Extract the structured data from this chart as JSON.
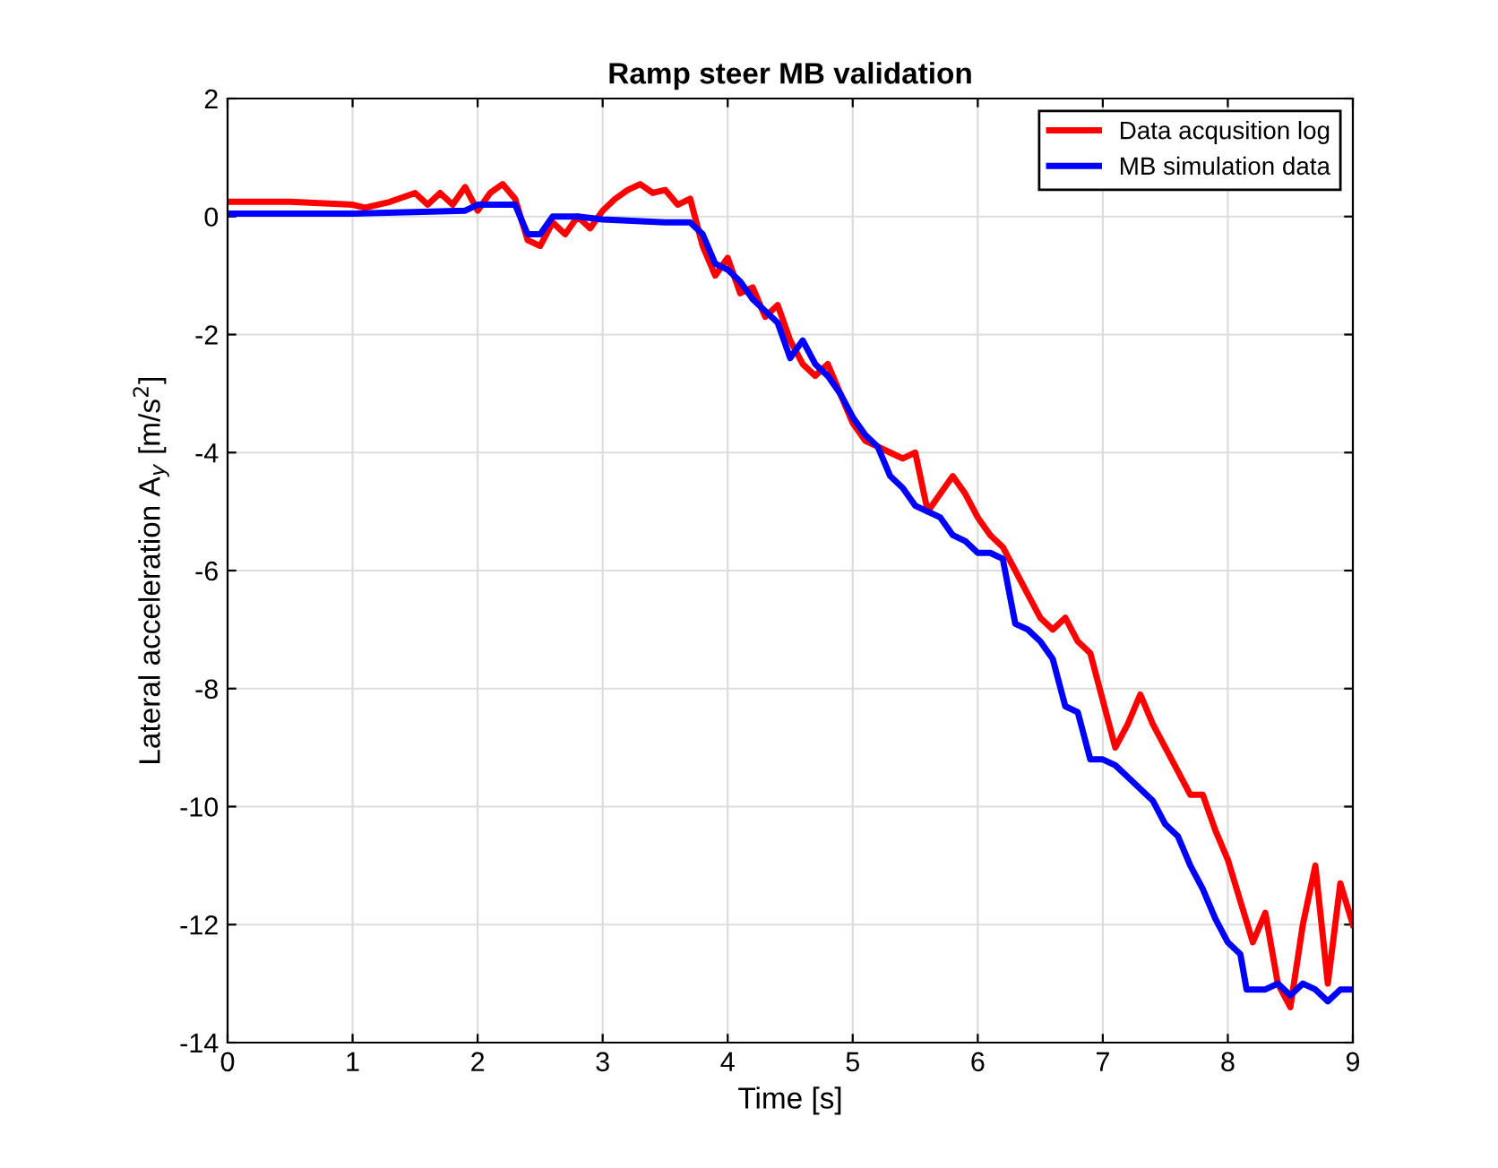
{
  "chart_data": {
    "type": "line",
    "title": "Ramp steer MB validation",
    "xlabel": "Time [s]",
    "ylabel": "Lateral acceleration A$_{y}$ [m/s$^{2}$]",
    "xlim": [
      0,
      9
    ],
    "ylim": [
      -14,
      2
    ],
    "xticks": [
      0,
      1,
      2,
      3,
      4,
      5,
      6,
      7,
      8,
      9
    ],
    "yticks": [
      -14,
      -12,
      -10,
      -8,
      -6,
      -4,
      -2,
      0,
      2
    ],
    "grid": true,
    "legend": "top right",
    "line_style": "solid",
    "marker": "none",
    "series": [
      {
        "name": "Data acqusition log",
        "color": "#ff0000",
        "x": [
          0,
          0.5,
          1.0,
          1.1,
          1.3,
          1.5,
          1.6,
          1.7,
          1.8,
          1.9,
          2.0,
          2.1,
          2.2,
          2.3,
          2.4,
          2.5,
          2.6,
          2.7,
          2.8,
          2.9,
          3.0,
          3.1,
          3.2,
          3.3,
          3.4,
          3.5,
          3.6,
          3.7,
          3.8,
          3.9,
          4.0,
          4.1,
          4.2,
          4.3,
          4.4,
          4.5,
          4.6,
          4.7,
          4.8,
          4.9,
          5.0,
          5.1,
          5.2,
          5.3,
          5.4,
          5.5,
          5.6,
          5.7,
          5.8,
          5.9,
          6.0,
          6.1,
          6.2,
          6.3,
          6.4,
          6.5,
          6.6,
          6.7,
          6.8,
          6.9,
          7.0,
          7.1,
          7.2,
          7.3,
          7.4,
          7.5,
          7.6,
          7.7,
          7.8,
          7.9,
          8.0,
          8.1,
          8.2,
          8.3,
          8.4,
          8.5,
          8.6,
          8.7,
          8.8,
          8.9,
          9.0
        ],
        "values": [
          0.25,
          0.25,
          0.2,
          0.15,
          0.25,
          0.4,
          0.2,
          0.4,
          0.2,
          0.5,
          0.1,
          0.4,
          0.55,
          0.3,
          -0.4,
          -0.5,
          -0.1,
          -0.3,
          0.0,
          -0.2,
          0.1,
          0.3,
          0.45,
          0.55,
          0.4,
          0.45,
          0.2,
          0.3,
          -0.5,
          -1.0,
          -0.7,
          -1.3,
          -1.2,
          -1.7,
          -1.5,
          -2.1,
          -2.5,
          -2.7,
          -2.5,
          -3.0,
          -3.5,
          -3.8,
          -3.9,
          -4.0,
          -4.1,
          -4.0,
          -5.0,
          -4.7,
          -4.4,
          -4.7,
          -5.1,
          -5.4,
          -5.6,
          -6.0,
          -6.4,
          -6.8,
          -7.0,
          -6.8,
          -7.2,
          -7.4,
          -8.2,
          -9.0,
          -8.6,
          -8.1,
          -8.6,
          -9.0,
          -9.4,
          -9.8,
          -9.8,
          -10.4,
          -10.9,
          -11.6,
          -12.3,
          -11.8,
          -13.0,
          -13.4,
          -12.0,
          -11.0,
          -13.0,
          -11.3,
          -12.0
        ]
      },
      {
        "name": "MB simulation data",
        "color": "#0000ff",
        "x": [
          0,
          1.0,
          1.9,
          2.0,
          2.2,
          2.3,
          2.4,
          2.5,
          2.6,
          2.8,
          3.0,
          3.5,
          3.7,
          3.8,
          3.9,
          4.0,
          4.1,
          4.2,
          4.3,
          4.4,
          4.5,
          4.6,
          4.7,
          4.8,
          4.9,
          5.0,
          5.1,
          5.2,
          5.3,
          5.4,
          5.5,
          5.6,
          5.7,
          5.8,
          5.9,
          6.0,
          6.1,
          6.2,
          6.3,
          6.4,
          6.5,
          6.6,
          6.7,
          6.8,
          6.9,
          7.0,
          7.1,
          7.2,
          7.3,
          7.4,
          7.5,
          7.6,
          7.7,
          7.8,
          7.9,
          8.0,
          8.1,
          8.15,
          8.2,
          8.3,
          8.4,
          8.5,
          8.6,
          8.7,
          8.8,
          8.9,
          9.0
        ],
        "values": [
          0.05,
          0.05,
          0.1,
          0.2,
          0.2,
          0.2,
          -0.3,
          -0.3,
          0.0,
          0.0,
          -0.05,
          -0.1,
          -0.1,
          -0.3,
          -0.8,
          -0.9,
          -1.1,
          -1.4,
          -1.6,
          -1.8,
          -2.4,
          -2.1,
          -2.5,
          -2.7,
          -3.0,
          -3.4,
          -3.7,
          -3.9,
          -4.4,
          -4.6,
          -4.9,
          -5.0,
          -5.1,
          -5.4,
          -5.5,
          -5.7,
          -5.7,
          -5.8,
          -6.9,
          -7.0,
          -7.2,
          -7.5,
          -8.3,
          -8.4,
          -9.2,
          -9.2,
          -9.3,
          -9.5,
          -9.7,
          -9.9,
          -10.3,
          -10.5,
          -11.0,
          -11.4,
          -11.9,
          -12.3,
          -12.5,
          -13.1,
          -13.1,
          -13.1,
          -13.0,
          -13.2,
          -13.0,
          -13.1,
          -13.3,
          -13.1,
          -13.1
        ]
      }
    ]
  }
}
